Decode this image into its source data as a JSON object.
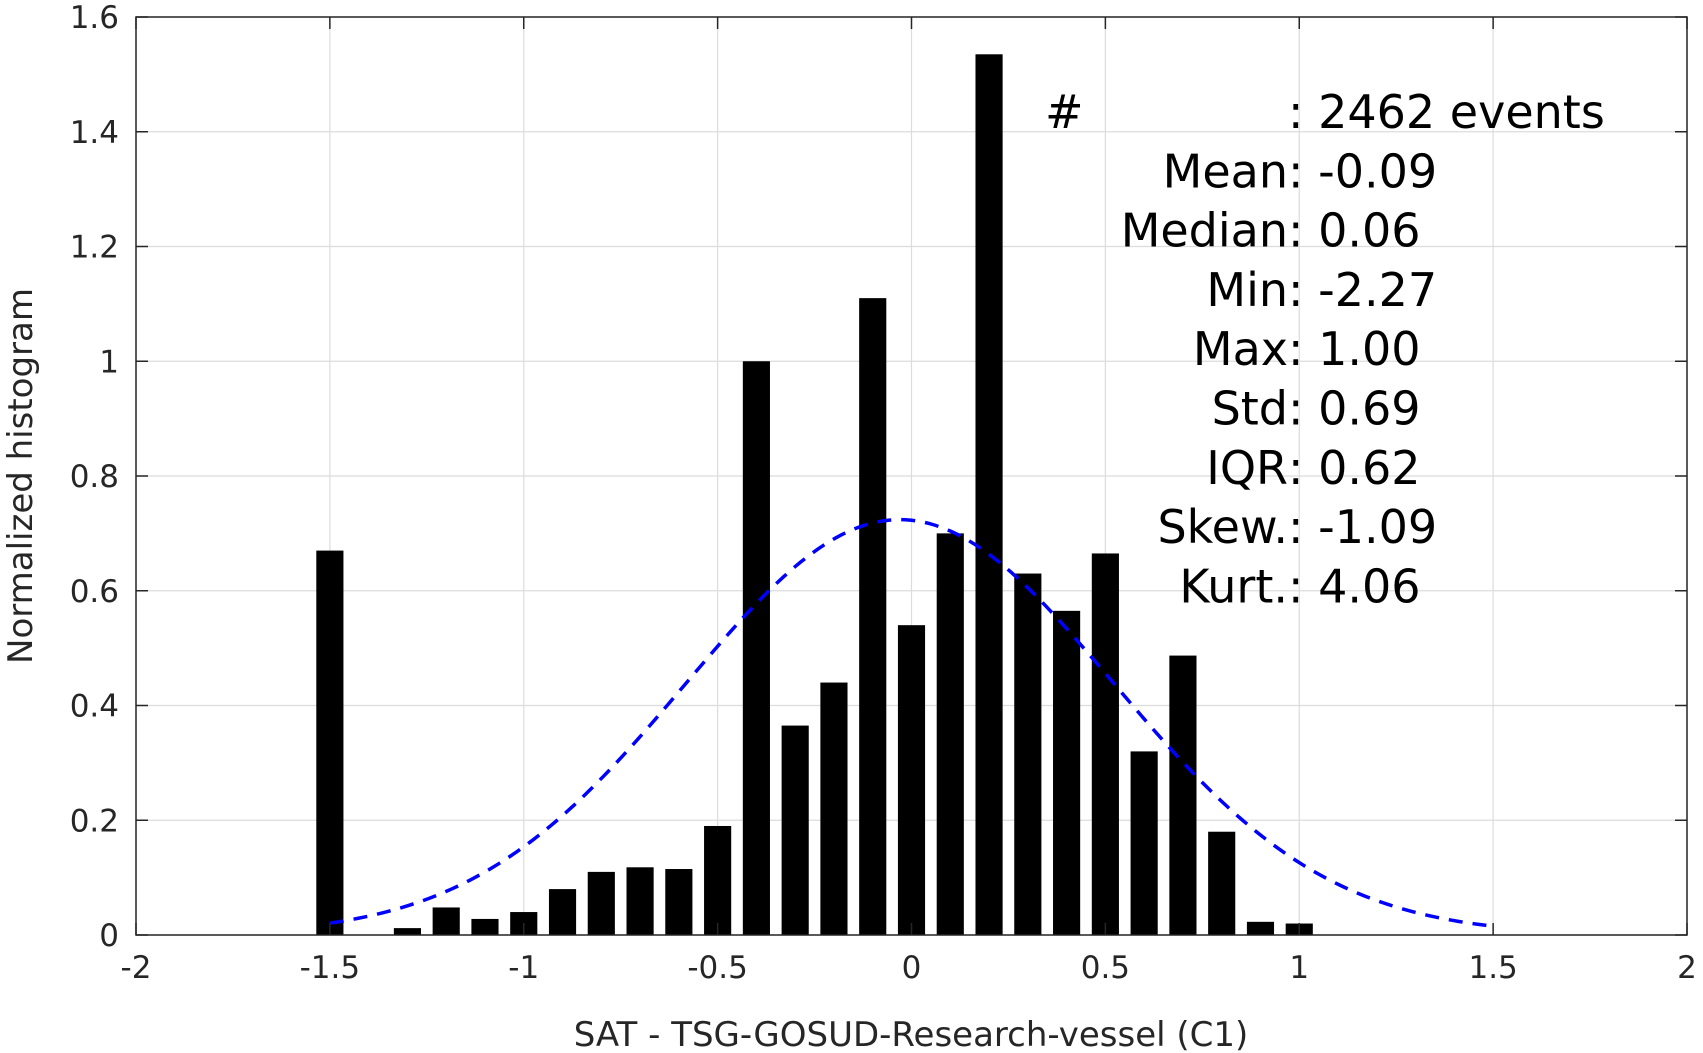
{
  "chart_data": {
    "type": "bar",
    "xlabel": "SAT - TSG-GOSUD-Research-vessel (C1)",
    "ylabel": "Normalized histogram",
    "xlim": [
      -2,
      2
    ],
    "ylim": [
      0,
      1.6
    ],
    "grid": true,
    "x_ticks": [
      {
        "value": -2,
        "label": "-2"
      },
      {
        "value": -1.5,
        "label": "-1.5"
      },
      {
        "value": -1,
        "label": "-1"
      },
      {
        "value": -0.5,
        "label": "-0.5"
      },
      {
        "value": 0,
        "label": "0"
      },
      {
        "value": 0.5,
        "label": "0.5"
      },
      {
        "value": 1,
        "label": "1"
      },
      {
        "value": 1.5,
        "label": "1.5"
      },
      {
        "value": 2,
        "label": "2"
      }
    ],
    "y_ticks": [
      {
        "value": 0,
        "label": "0"
      },
      {
        "value": 0.2,
        "label": "0.2"
      },
      {
        "value": 0.4,
        "label": "0.4"
      },
      {
        "value": 0.6,
        "label": "0.6"
      },
      {
        "value": 0.8,
        "label": "0.8"
      },
      {
        "value": 1.0,
        "label": "1"
      },
      {
        "value": 1.2,
        "label": "1.2"
      },
      {
        "value": 1.4,
        "label": "1.4"
      },
      {
        "value": 1.6,
        "label": "1.6"
      }
    ],
    "bar_width": 0.07,
    "bars": [
      {
        "x": -1.5,
        "y": 0.67
      },
      {
        "x": -1.3,
        "y": 0.012
      },
      {
        "x": -1.2,
        "y": 0.048
      },
      {
        "x": -1.1,
        "y": 0.028
      },
      {
        "x": -1.0,
        "y": 0.04
      },
      {
        "x": -0.9,
        "y": 0.08
      },
      {
        "x": -0.8,
        "y": 0.11
      },
      {
        "x": -0.7,
        "y": 0.118
      },
      {
        "x": -0.6,
        "y": 0.115
      },
      {
        "x": -0.5,
        "y": 0.19
      },
      {
        "x": -0.4,
        "y": 1.0
      },
      {
        "x": -0.3,
        "y": 0.365
      },
      {
        "x": -0.2,
        "y": 0.44
      },
      {
        "x": -0.1,
        "y": 1.11
      },
      {
        "x": 0.0,
        "y": 0.54
      },
      {
        "x": 0.1,
        "y": 0.7
      },
      {
        "x": 0.2,
        "y": 1.535
      },
      {
        "x": 0.3,
        "y": 0.63
      },
      {
        "x": 0.4,
        "y": 0.565
      },
      {
        "x": 0.5,
        "y": 0.665
      },
      {
        "x": 0.6,
        "y": 0.32
      },
      {
        "x": 0.7,
        "y": 0.487
      },
      {
        "x": 0.8,
        "y": 0.18
      },
      {
        "x": 0.9,
        "y": 0.023
      },
      {
        "x": 1.0,
        "y": 0.02
      }
    ],
    "fit_curve": {
      "style": "dashed",
      "color": "#0000ff",
      "peak_x": -0.03,
      "peak_y": 0.724,
      "x_range": [
        -1.5,
        1.5
      ]
    },
    "bar_color": "#000000",
    "stats": [
      {
        "label": "#",
        "sep": " : ",
        "value": "2462 events"
      },
      {
        "label": "Mean",
        "sep": " : ",
        "value": "-0.09"
      },
      {
        "label": "Median",
        "sep": " : ",
        "value": "0.06"
      },
      {
        "label": "Min",
        "sep": " : ",
        "value": "-2.27"
      },
      {
        "label": "Max",
        "sep": " : ",
        "value": "1.00"
      },
      {
        "label": "Std",
        "sep": " : ",
        "value": "0.69"
      },
      {
        "label": "IQR",
        "sep": " : ",
        "value": "0.62"
      },
      {
        "label": "Skew.",
        "sep": " : ",
        "value": "-1.09"
      },
      {
        "label": "Kurt.",
        "sep": " : ",
        "value": "4.06"
      }
    ]
  }
}
